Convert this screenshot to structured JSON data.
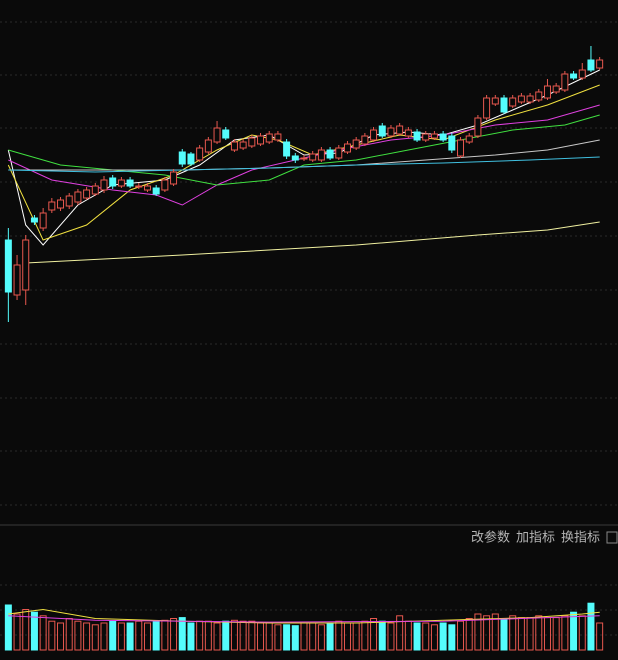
{
  "chart_data": {
    "type": "candlestick",
    "ylim": [
      0,
      525
    ],
    "up_color": "#e8584f",
    "down_color": "#54fcfc",
    "open": [
      285,
      230,
      235,
      307,
      297,
      315,
      317,
      319,
      323,
      327,
      331,
      335,
      347,
      339,
      345,
      339,
      335,
      337,
      335,
      341,
      373,
      371,
      365,
      373,
      383,
      395,
      375,
      377,
      379,
      381,
      383,
      385,
      383,
      369,
      367,
      365,
      365,
      375,
      367,
      373,
      377,
      381,
      385,
      399,
      389,
      391,
      389,
      393,
      385,
      387,
      391,
      389,
      369,
      383,
      389,
      407,
      421,
      427,
      419,
      423,
      423,
      425,
      427,
      433,
      435,
      451,
      447,
      465,
      457
    ],
    "high": [
      297,
      270,
      290,
      310,
      317,
      327,
      328,
      332,
      336,
      338,
      342,
      349,
      350,
      348,
      348,
      342,
      342,
      340,
      348,
      356,
      376,
      373,
      380,
      388,
      404,
      398,
      386,
      386,
      390,
      392,
      394,
      394,
      386,
      372,
      370,
      374,
      378,
      378,
      380,
      384,
      388,
      392,
      398,
      402,
      400,
      402,
      398,
      396,
      394,
      394,
      394,
      392,
      388,
      392,
      410,
      430,
      430,
      430,
      430,
      432,
      432,
      436,
      446,
      442,
      454,
      454,
      462,
      479,
      468
    ],
    "low": [
      203,
      225,
      220,
      300,
      294,
      312,
      314,
      316,
      320,
      325,
      329,
      332,
      336,
      337,
      337,
      336,
      333,
      329,
      333,
      339,
      358,
      359,
      363,
      371,
      381,
      385,
      373,
      375,
      377,
      379,
      381,
      383,
      366,
      362,
      364,
      363,
      363,
      365,
      365,
      371,
      375,
      379,
      383,
      387,
      387,
      389,
      387,
      383,
      383,
      385,
      383,
      372,
      367,
      381,
      387,
      405,
      419,
      411,
      417,
      421,
      421,
      423,
      425,
      431,
      433,
      445,
      445,
      453,
      455
    ],
    "close": [
      233,
      260,
      285,
      303,
      312,
      323,
      325,
      329,
      333,
      335,
      339,
      345,
      339,
      345,
      339,
      339,
      339,
      331,
      345,
      353,
      361,
      361,
      377,
      385,
      397,
      387,
      383,
      383,
      387,
      389,
      391,
      391,
      369,
      365,
      367,
      371,
      375,
      367,
      377,
      381,
      385,
      389,
      395,
      389,
      397,
      399,
      395,
      385,
      391,
      391,
      385,
      375,
      385,
      389,
      407,
      427,
      427,
      413,
      427,
      429,
      429,
      433,
      439,
      439,
      451,
      447,
      455,
      455,
      465
    ],
    "series": [
      {
        "color": "#ffffff",
        "x": [
          0,
          2,
          4,
          8,
          12,
          18,
          22,
          26,
          30,
          34,
          38,
          42,
          46,
          50,
          54,
          58,
          62,
          68
        ],
        "values": [
          375,
          300,
          280,
          320,
          340,
          345,
          360,
          385,
          390,
          370,
          372,
          390,
          393,
          390,
          400,
          415,
          430,
          455
        ]
      },
      {
        "color": "#f0e040",
        "x": [
          0,
          4,
          9,
          14,
          19,
          24,
          28,
          31,
          35,
          40,
          45,
          50,
          56,
          62,
          68
        ],
        "values": [
          360,
          285,
          300,
          335,
          350,
          375,
          390,
          385,
          370,
          380,
          390,
          385,
          405,
          420,
          440
        ]
      },
      {
        "color": "#e040e0",
        "x": [
          0,
          5,
          12,
          17,
          20,
          24,
          28,
          33,
          38,
          44,
          50,
          56,
          62,
          68
        ],
        "values": [
          365,
          345,
          335,
          330,
          320,
          340,
          355,
          365,
          375,
          385,
          390,
          400,
          405,
          420
        ]
      },
      {
        "color": "#40e040",
        "x": [
          0,
          6,
          12,
          18,
          24,
          30,
          34,
          40,
          46,
          52,
          58,
          64,
          68
        ],
        "values": [
          375,
          360,
          355,
          350,
          340,
          345,
          360,
          365,
          375,
          385,
          395,
          400,
          410
        ]
      },
      {
        "color": "#c8c8c8",
        "x": [
          0,
          10,
          20,
          30,
          40,
          48,
          56,
          62,
          68
        ],
        "values": [
          355,
          355,
          355,
          357,
          360,
          365,
          370,
          375,
          385
        ]
      },
      {
        "color": "#40c0e0",
        "x": [
          0,
          10,
          20,
          30,
          40,
          50,
          60,
          68
        ],
        "values": [
          355,
          353,
          355,
          357,
          360,
          362,
          365,
          368
        ]
      },
      {
        "color": "#f0f0a0",
        "x": [
          2,
          20,
          40,
          54,
          62,
          68
        ],
        "values": [
          262,
          270,
          280,
          290,
          295,
          303
        ]
      }
    ],
    "volume": {
      "ylim": [
        0,
        100
      ],
      "values": [
        50,
        40,
        45,
        42,
        38,
        32,
        30,
        35,
        32,
        30,
        28,
        30,
        32,
        30,
        30,
        32,
        30,
        32,
        33,
        35,
        36,
        30,
        32,
        32,
        30,
        32,
        33,
        32,
        32,
        30,
        30,
        28,
        28,
        27,
        30,
        30,
        28,
        30,
        32,
        30,
        30,
        32,
        35,
        32,
        30,
        38,
        32,
        30,
        30,
        28,
        30,
        28,
        32,
        35,
        40,
        38,
        40,
        35,
        38,
        36,
        36,
        38,
        36,
        36,
        38,
        42,
        38,
        52,
        30
      ],
      "series": [
        {
          "color": "#f0e040",
          "x": [
            0,
            4,
            10,
            20,
            30,
            40,
            50,
            60,
            66,
            68
          ],
          "values": [
            40,
            45,
            35,
            32,
            30,
            30,
            33,
            36,
            40,
            42
          ]
        },
        {
          "color": "#e040e0",
          "x": [
            0,
            10,
            30,
            50,
            68
          ],
          "values": [
            38,
            33,
            31,
            32,
            38
          ]
        }
      ]
    }
  },
  "toolbar": {
    "buttons": [
      "改参数",
      "加指标",
      "换指标"
    ]
  }
}
